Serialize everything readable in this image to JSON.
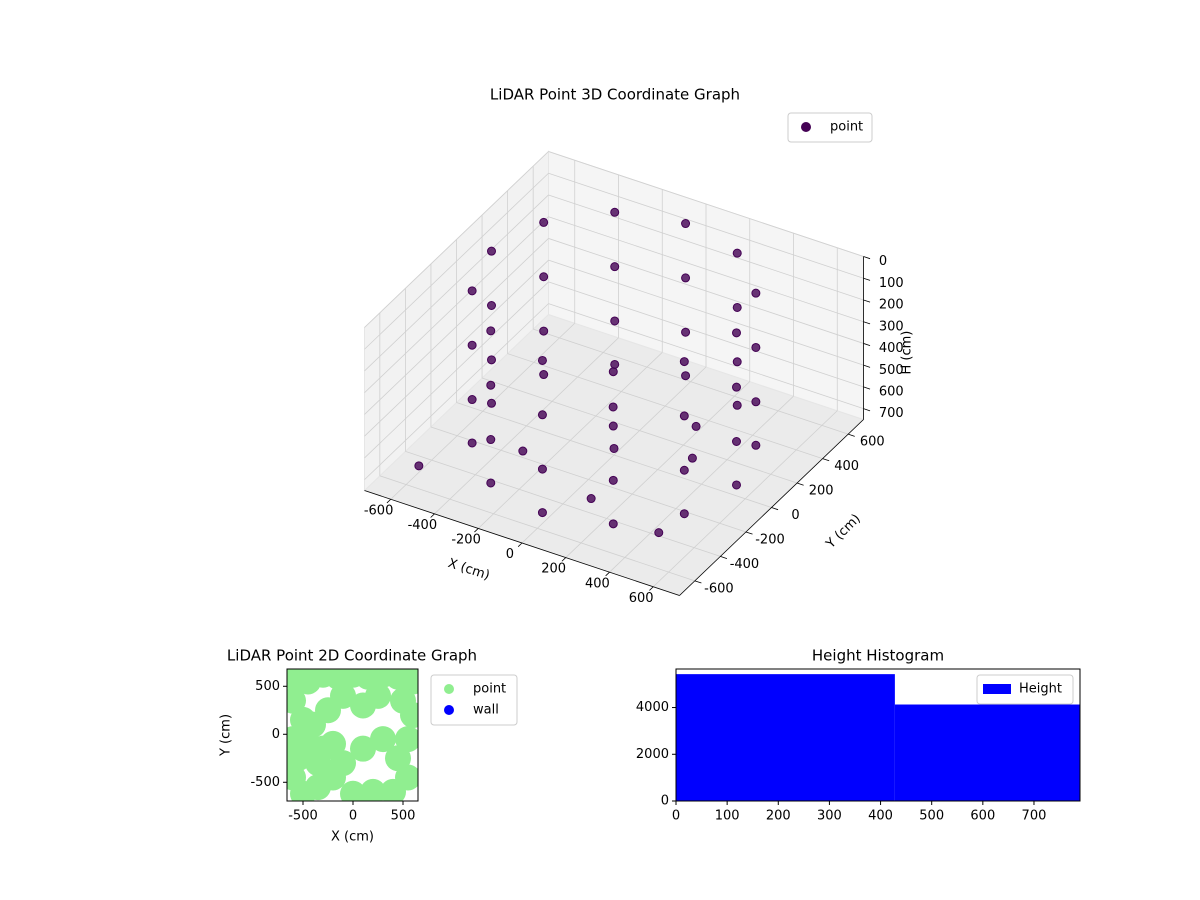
{
  "chart_data": [
    {
      "type": "scatter3d",
      "title": "LiDAR Point 3D Coordinate Graph",
      "xlabel": "X (cm)",
      "ylabel": "Y (cm)",
      "zlabel": "H (cm)",
      "xlim": [
        -720,
        720
      ],
      "ylim": [
        -720,
        720
      ],
      "zlim": [
        750,
        0
      ],
      "xticks": [
        -600,
        -400,
        -200,
        0,
        200,
        400,
        600
      ],
      "yticks": [
        -600,
        -400,
        -200,
        0,
        200,
        400,
        600
      ],
      "zticks": [
        0,
        100,
        200,
        300,
        400,
        500,
        600,
        700
      ],
      "grid": true,
      "legend": "upper right",
      "series": [
        {
          "name": "point",
          "color": "#440154",
          "x": [
            560,
            485,
            280,
            0,
            -280,
            -485,
            -560,
            -485,
            -280,
            0,
            280,
            485,
            560,
            485,
            280,
            0,
            -280,
            -485,
            -560,
            -485,
            -280,
            0,
            280,
            485,
            560,
            485,
            280,
            0,
            -280,
            -485,
            -560,
            -485,
            -280,
            0,
            280,
            485,
            560,
            485,
            280,
            0,
            -280,
            -485,
            -560,
            -485,
            -280,
            0,
            280,
            485,
            -300,
            100,
            300,
            -150,
            0,
            -600,
            450,
            200
          ],
          "y": [
            0,
            280,
            485,
            560,
            485,
            280,
            0,
            -280,
            -485,
            -560,
            -485,
            -280,
            0,
            280,
            485,
            560,
            485,
            280,
            0,
            -280,
            -485,
            -560,
            -485,
            -280,
            0,
            280,
            485,
            560,
            485,
            280,
            0,
            -280,
            -485,
            -560,
            -485,
            -280,
            0,
            280,
            485,
            560,
            485,
            280,
            0,
            -280,
            -485,
            -560,
            -485,
            -280,
            -200,
            -350,
            100,
            250,
            0,
            -500,
            -420,
            300
          ],
          "z": [
            0,
            0,
            0,
            0,
            0,
            0,
            0,
            0,
            0,
            0,
            0,
            0,
            250,
            250,
            250,
            250,
            250,
            250,
            250,
            250,
            250,
            250,
            250,
            250,
            500,
            500,
            500,
            500,
            500,
            500,
            500,
            500,
            500,
            500,
            500,
            500,
            700,
            700,
            700,
            700,
            700,
            700,
            700,
            700,
            700,
            700,
            700,
            700,
            720,
            720,
            720,
            720,
            720,
            720,
            720,
            720
          ]
        }
      ]
    },
    {
      "type": "scatter",
      "title": "LiDAR Point 2D Coordinate Graph",
      "xlabel": "X (cm)",
      "ylabel": "Y (cm)",
      "xlim": [
        -660,
        650
      ],
      "ylim": [
        -695,
        680
      ],
      "xticks": [
        -500,
        0,
        500
      ],
      "yticks": [
        -500,
        0,
        500
      ],
      "legend": "outside right",
      "series": [
        {
          "name": "point",
          "color": "#90ee90",
          "x": [
            -600,
            -450,
            -300,
            -150,
            0,
            150,
            300,
            450,
            600,
            -600,
            -500,
            -600,
            -550,
            -600,
            -500,
            -350,
            -200,
            -350,
            -200,
            -400,
            -250,
            -100,
            100,
            250,
            500,
            600,
            550,
            450,
            550,
            400,
            200,
            0,
            300,
            100,
            -100,
            -450,
            -300
          ],
          "y": [
            600,
            550,
            620,
            600,
            620,
            600,
            620,
            600,
            550,
            350,
            150,
            -50,
            -250,
            -450,
            -620,
            -550,
            -450,
            -300,
            -100,
            100,
            250,
            400,
            300,
            400,
            350,
            200,
            -50,
            -250,
            -450,
            -600,
            -600,
            -620,
            -50,
            -150,
            -300,
            -100,
            -150
          ]
        },
        {
          "name": "wall",
          "color": "#0000ff",
          "x": [],
          "y": []
        }
      ]
    },
    {
      "type": "histogram",
      "title": "Height Histogram",
      "bins": [
        0,
        428,
        790
      ],
      "series": [
        {
          "name": "Height",
          "color": "#0000ff",
          "values": [
            5430,
            4130
          ]
        }
      ],
      "xlim": [
        0,
        790
      ],
      "ylim": [
        0,
        5650
      ],
      "xticks": [
        0,
        100,
        200,
        300,
        400,
        500,
        600,
        700
      ],
      "yticks": [
        0,
        2000,
        4000
      ],
      "legend": "upper right"
    }
  ]
}
